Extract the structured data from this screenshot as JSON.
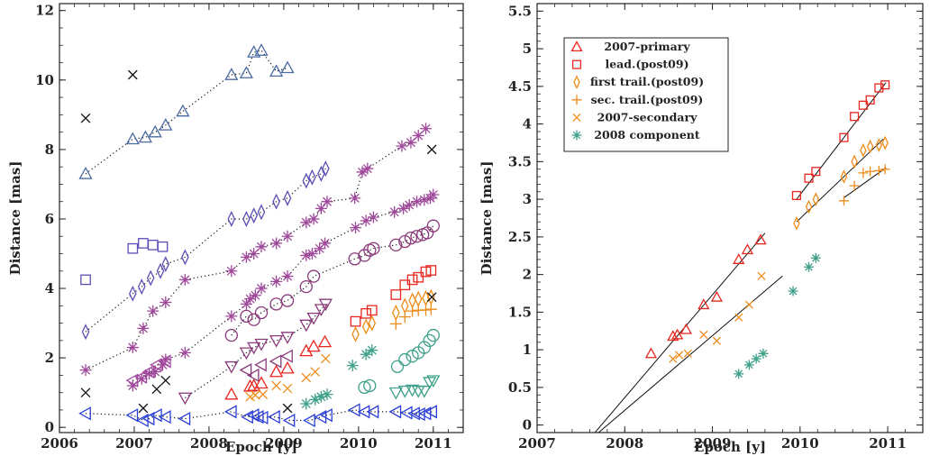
{
  "colors": {
    "red": "#e8261e",
    "orange": "#ee8c1a",
    "teal": "#3fa08a",
    "blue": "#2b3fd6",
    "steel": "#4a6aa3",
    "violet": "#5a4fb5",
    "purple": "#a0489c",
    "plum": "#8a3a7a",
    "black": "#111111"
  },
  "chart_data": [
    {
      "type": "scatter",
      "xlabel": "Epoch [y]",
      "ylabel": "Distance [mas]",
      "xlim": [
        2006,
        2011.4
      ],
      "ylim": [
        -0.15,
        12.2
      ],
      "xticks": [
        2006,
        2007,
        2008,
        2009,
        2010,
        2011
      ],
      "yticks": [
        0,
        2,
        4,
        6,
        8,
        10,
        12
      ],
      "grid": false,
      "series": [
        {
          "marker": "triangle-up",
          "color": "steel",
          "connect": true,
          "x": [
            2006.35,
            2006.98,
            2007.15,
            2007.28,
            2007.42,
            2007.65,
            2008.3,
            2008.5,
            2008.6,
            2008.7,
            2008.9,
            2009.05
          ],
          "y": [
            7.3,
            8.3,
            8.35,
            8.5,
            8.7,
            9.1,
            10.15,
            10.2,
            10.8,
            10.85,
            10.25,
            10.35
          ]
        },
        {
          "marker": "square",
          "color": "violet",
          "connect": false,
          "x": [
            2006.35,
            2006.98,
            2007.12,
            2007.25,
            2007.38
          ],
          "y": [
            4.25,
            5.15,
            5.3,
            5.25,
            5.2
          ]
        },
        {
          "marker": "diamond",
          "color": "violet",
          "connect": true,
          "x": [
            2006.35,
            2006.98,
            2007.1,
            2007.22,
            2007.35,
            2007.42,
            2007.68,
            2008.3,
            2008.5,
            2008.6,
            2008.7,
            2008.9,
            2009.05,
            2009.3,
            2009.38,
            2009.5,
            2009.56
          ],
          "y": [
            2.75,
            3.85,
            4.05,
            4.3,
            4.5,
            4.7,
            4.9,
            6.0,
            6.0,
            6.1,
            6.2,
            6.5,
            6.6,
            7.1,
            7.2,
            7.3,
            7.45
          ]
        },
        {
          "marker": "star",
          "color": "purple",
          "connect": true,
          "x": [
            2006.35,
            2006.98,
            2007.12,
            2007.25,
            2007.42,
            2007.68,
            2008.3,
            2008.5,
            2008.6,
            2008.7,
            2008.9,
            2009.05,
            2009.3,
            2009.4,
            2009.5,
            2009.58,
            2009.95,
            2010.05,
            2010.12,
            2010.58,
            2010.7,
            2010.8,
            2010.9
          ],
          "y": [
            1.65,
            2.3,
            2.85,
            3.35,
            3.6,
            4.25,
            4.5,
            4.9,
            5.0,
            5.2,
            5.3,
            5.5,
            5.9,
            6.0,
            6.3,
            6.5,
            6.6,
            7.35,
            7.45,
            8.1,
            8.2,
            8.4,
            8.6
          ]
        },
        {
          "marker": "star",
          "color": "purple",
          "connect": true,
          "x": [
            2006.98,
            2007.1,
            2007.2,
            2007.28,
            2007.38,
            2007.42,
            2007.68,
            2008.3,
            2008.5,
            2008.55,
            2008.62,
            2008.7,
            2008.9,
            2009.05,
            2009.3,
            2009.38,
            2009.48,
            2009.55,
            2009.96,
            2010.1,
            2010.2,
            2010.48,
            2010.6,
            2010.68,
            2010.78,
            2010.88,
            2010.96,
            2011.0
          ],
          "y": [
            1.2,
            1.4,
            1.55,
            1.6,
            1.8,
            1.95,
            2.15,
            3.2,
            3.55,
            3.7,
            3.8,
            4.0,
            4.2,
            4.35,
            4.95,
            5.0,
            5.15,
            5.3,
            5.75,
            5.95,
            6.05,
            6.2,
            6.3,
            6.4,
            6.5,
            6.55,
            6.6,
            6.7
          ]
        },
        {
          "marker": "triangle-left",
          "color": "purple",
          "connect": true,
          "x": [
            2006.98,
            2007.1,
            2007.2,
            2007.3,
            2007.42
          ],
          "y": [
            1.35,
            1.45,
            1.6,
            1.8,
            1.9
          ]
        },
        {
          "marker": "circle",
          "color": "plum",
          "connect": true,
          "x": [
            2008.3,
            2008.5,
            2008.6,
            2008.7,
            2008.9,
            2009.05,
            2009.3,
            2009.4,
            2009.95,
            2010.08,
            2010.15,
            2010.2,
            2010.5,
            2010.62,
            2010.7,
            2010.78,
            2010.86,
            2010.92,
            2011.0
          ],
          "y": [
            2.65,
            3.2,
            3.1,
            3.3,
            3.55,
            3.65,
            4.05,
            4.35,
            4.85,
            4.95,
            5.1,
            5.15,
            5.25,
            5.35,
            5.45,
            5.5,
            5.55,
            5.6,
            5.8
          ]
        },
        {
          "marker": "triangle-down",
          "color": "plum",
          "connect": true,
          "x": [
            2007.68,
            2008.3,
            2008.5,
            2008.6,
            2008.7,
            2008.9,
            2009.05,
            2009.3,
            2009.4,
            2009.5,
            2009.56
          ],
          "y": [
            0.85,
            1.75,
            2.15,
            2.3,
            2.4,
            2.5,
            2.6,
            2.95,
            3.15,
            3.4,
            3.55
          ]
        },
        {
          "marker": "triangle-left",
          "color": "plum",
          "connect": false,
          "x": [
            2008.5,
            2008.6,
            2008.7,
            2008.9,
            2009.05
          ],
          "y": [
            1.65,
            1.5,
            1.8,
            1.9,
            2.05
          ]
        },
        {
          "marker": "triangle-up",
          "color": "red",
          "connect": false,
          "x": [
            2008.3,
            2008.55,
            2008.6,
            2008.7,
            2008.9,
            2009.05,
            2009.3,
            2009.4,
            2009.55
          ],
          "y": [
            0.95,
            1.18,
            1.2,
            1.27,
            1.6,
            1.7,
            2.2,
            2.33,
            2.46
          ]
        },
        {
          "marker": "square",
          "color": "red",
          "connect": false,
          "x": [
            2009.96,
            2010.1,
            2010.18,
            2010.5,
            2010.62,
            2010.72,
            2010.8,
            2010.9,
            2010.97
          ],
          "y": [
            3.05,
            3.28,
            3.37,
            3.82,
            4.1,
            4.25,
            4.32,
            4.48,
            4.52
          ]
        },
        {
          "marker": "diamond",
          "color": "orange",
          "connect": false,
          "x": [
            2009.96,
            2010.1,
            2010.18,
            2010.5,
            2010.62,
            2010.72,
            2010.8,
            2010.9,
            2010.97
          ],
          "y": [
            2.68,
            2.9,
            3.0,
            3.3,
            3.5,
            3.65,
            3.7,
            3.72,
            3.75
          ]
        },
        {
          "marker": "plus",
          "color": "orange",
          "connect": false,
          "x": [
            2010.5,
            2010.62,
            2010.72,
            2010.8,
            2010.9,
            2010.97
          ],
          "y": [
            2.98,
            3.18,
            3.35,
            3.37,
            3.38,
            3.4
          ]
        },
        {
          "marker": "x",
          "color": "orange",
          "connect": false,
          "x": [
            2008.55,
            2008.62,
            2008.72,
            2008.9,
            2009.05,
            2009.3,
            2009.42,
            2009.56
          ],
          "y": [
            0.88,
            0.93,
            0.95,
            1.2,
            1.12,
            1.43,
            1.6,
            1.98
          ]
        },
        {
          "marker": "star",
          "color": "teal",
          "connect": false,
          "x": [
            2009.3,
            2009.42,
            2009.5,
            2009.58,
            2009.92,
            2010.1,
            2010.18
          ],
          "y": [
            0.68,
            0.8,
            0.88,
            0.95,
            1.78,
            2.1,
            2.22
          ]
        },
        {
          "marker": "circle",
          "color": "teal",
          "connect": false,
          "x": [
            2010.08,
            2010.15,
            2010.52,
            2010.62,
            2010.72,
            2010.8,
            2010.88,
            2010.95,
            2011.0
          ],
          "y": [
            1.15,
            1.2,
            1.75,
            1.95,
            2.05,
            2.15,
            2.3,
            2.5,
            2.65
          ]
        },
        {
          "marker": "triangle-down",
          "color": "teal",
          "connect": false,
          "x": [
            2010.5,
            2010.62,
            2010.72,
            2010.8,
            2010.88,
            2010.95,
            2011.0
          ],
          "y": [
            1.0,
            1.05,
            1.08,
            1.05,
            1.05,
            1.3,
            1.35
          ]
        },
        {
          "marker": "triangle-left",
          "color": "blue",
          "connect": true,
          "x": [
            2006.35,
            2006.98,
            2007.12,
            2007.2,
            2007.3,
            2007.42,
            2007.68,
            2008.3,
            2008.52,
            2008.6,
            2008.66,
            2008.72,
            2008.88,
            2009.08,
            2009.35,
            2009.5,
            2009.58,
            2009.95,
            2010.08,
            2010.2,
            2010.5,
            2010.65,
            2010.75,
            2010.82,
            2010.9,
            2010.98
          ],
          "y": [
            0.4,
            0.35,
            0.2,
            0.25,
            0.35,
            0.3,
            0.25,
            0.45,
            0.3,
            0.35,
            0.3,
            0.28,
            0.3,
            0.2,
            0.2,
            0.3,
            0.35,
            0.5,
            0.45,
            0.45,
            0.45,
            0.42,
            0.4,
            0.38,
            0.4,
            0.45
          ]
        },
        {
          "marker": "x",
          "color": "black",
          "connect": false,
          "x": [
            2006.35,
            2006.35,
            2006.98,
            2007.12,
            2007.3,
            2007.42,
            2009.05,
            2010.98,
            2010.98
          ],
          "y": [
            8.9,
            1.0,
            10.15,
            0.55,
            1.1,
            1.35,
            0.55,
            8.0,
            3.75
          ]
        }
      ]
    },
    {
      "type": "scatter",
      "xlabel": "Epoch [y]",
      "ylabel": "Distance [mas]",
      "xlim": [
        2007,
        2011.4
      ],
      "ylim": [
        -0.1,
        5.6
      ],
      "xticks": [
        2007,
        2008,
        2009,
        2010,
        2011
      ],
      "yticks": [
        0,
        0.5,
        1,
        1.5,
        2,
        2.5,
        3,
        3.5,
        4,
        4.5,
        5,
        5.5
      ],
      "grid": false,
      "legend": {
        "position": "top-left",
        "entries": [
          {
            "label": "2007-primary",
            "marker": "triangle-up",
            "color": "red"
          },
          {
            "label": "lead.(post09)",
            "marker": "square",
            "color": "red"
          },
          {
            "label": "first trail.(post09)",
            "marker": "diamond",
            "color": "orange"
          },
          {
            "label": "sec. trail.(post09)",
            "marker": "plus",
            "color": "orange"
          },
          {
            "label": "2007-secondary",
            "marker": "x",
            "color": "orange"
          },
          {
            "label": "2008 component",
            "marker": "star",
            "color": "teal"
          }
        ]
      },
      "series": [
        {
          "name": "2007-primary",
          "marker": "triangle-up",
          "color": "red",
          "x": [
            2008.3,
            2008.55,
            2008.6,
            2008.7,
            2008.9,
            2009.05,
            2009.3,
            2009.4,
            2009.55
          ],
          "y": [
            0.95,
            1.18,
            1.2,
            1.27,
            1.6,
            1.7,
            2.2,
            2.33,
            2.46
          ]
        },
        {
          "name": "lead.(post09)",
          "marker": "square",
          "color": "red",
          "x": [
            2009.96,
            2010.1,
            2010.18,
            2010.5,
            2010.62,
            2010.72,
            2010.8,
            2010.9,
            2010.97
          ],
          "y": [
            3.05,
            3.28,
            3.37,
            3.82,
            4.1,
            4.25,
            4.32,
            4.48,
            4.52
          ]
        },
        {
          "name": "first trail.(post09)",
          "marker": "diamond",
          "color": "orange",
          "x": [
            2009.96,
            2010.1,
            2010.18,
            2010.5,
            2010.62,
            2010.72,
            2010.8,
            2010.9,
            2010.97
          ],
          "y": [
            2.68,
            2.9,
            3.0,
            3.3,
            3.5,
            3.65,
            3.7,
            3.72,
            3.75
          ]
        },
        {
          "name": "sec. trail.(post09)",
          "marker": "plus",
          "color": "orange",
          "x": [
            2010.5,
            2010.62,
            2010.72,
            2010.8,
            2010.9,
            2010.97
          ],
          "y": [
            2.98,
            3.18,
            3.35,
            3.37,
            3.38,
            3.4
          ]
        },
        {
          "name": "2007-secondary",
          "marker": "x",
          "color": "orange",
          "x": [
            2008.55,
            2008.62,
            2008.72,
            2008.9,
            2009.05,
            2009.3,
            2009.42,
            2009.56
          ],
          "y": [
            0.88,
            0.93,
            0.95,
            1.2,
            1.12,
            1.43,
            1.6,
            1.98
          ]
        },
        {
          "name": "2008 component",
          "marker": "star",
          "color": "teal",
          "x": [
            2009.3,
            2009.42,
            2009.5,
            2009.58,
            2009.92,
            2010.1,
            2010.18
          ],
          "y": [
            0.68,
            0.8,
            0.88,
            0.95,
            1.78,
            2.1,
            2.22
          ]
        }
      ],
      "fit_lines": [
        {
          "color": "black",
          "x": [
            2007.55,
            2009.6
          ],
          "y": [
            -0.25,
            2.55
          ]
        },
        {
          "color": "black",
          "x": [
            2007.55,
            2009.8
          ],
          "y": [
            -0.25,
            1.98
          ]
        },
        {
          "color": "black",
          "x": [
            2009.96,
            2010.98
          ],
          "y": [
            3.0,
            4.55
          ]
        },
        {
          "color": "black",
          "x": [
            2009.96,
            2010.95
          ],
          "y": [
            2.7,
            3.8
          ]
        },
        {
          "color": "black",
          "x": [
            2010.5,
            2010.98
          ],
          "y": [
            3.02,
            3.42
          ]
        }
      ]
    }
  ]
}
